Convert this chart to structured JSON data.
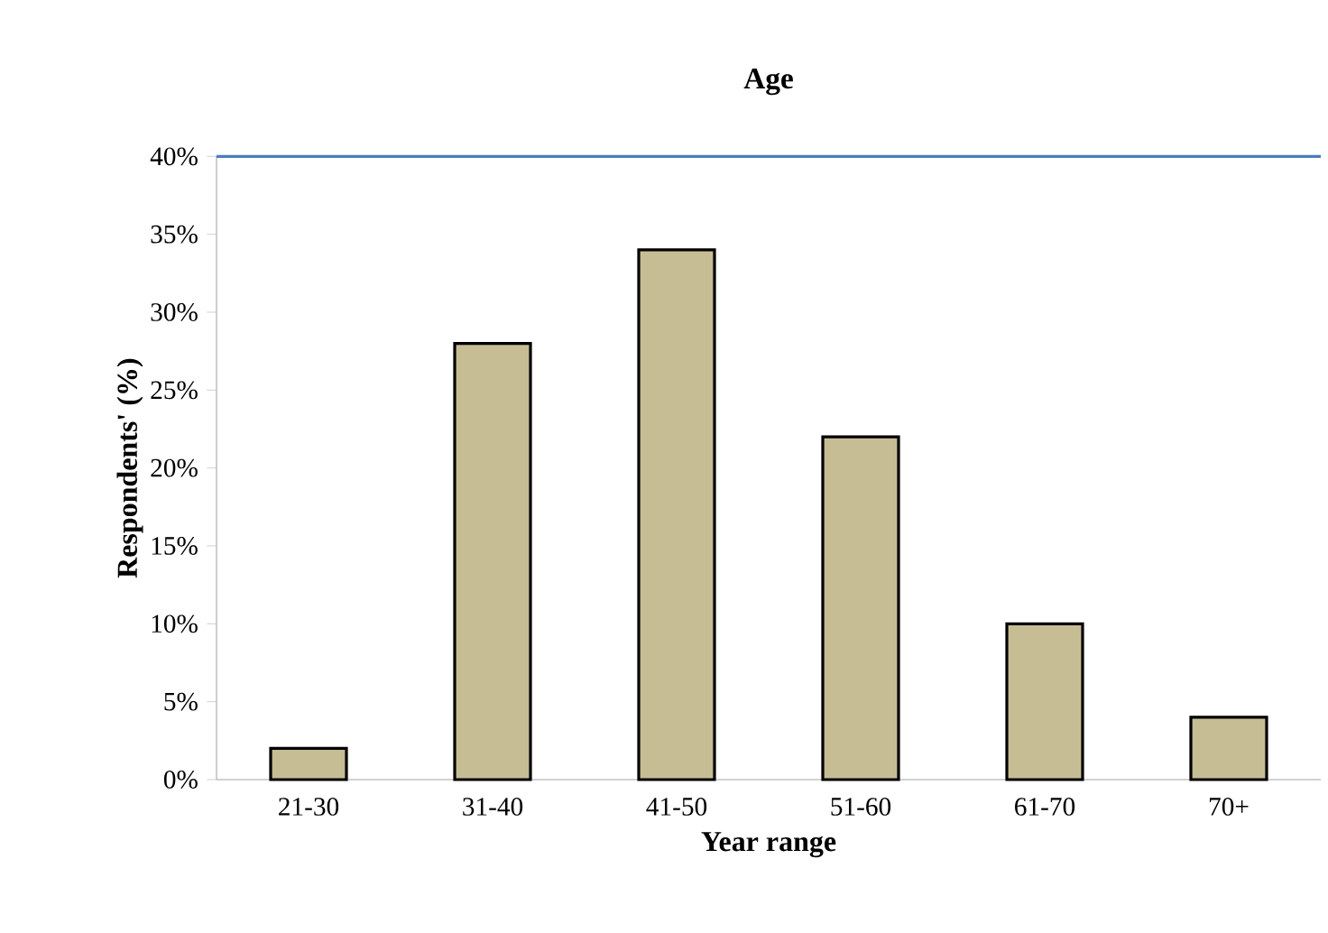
{
  "chart_data": {
    "type": "bar",
    "title": "Age",
    "xlabel": "Year range",
    "ylabel": "Respondents' (%)",
    "categories": [
      "21-30",
      "31-40",
      "41-50",
      "51-60",
      "61-70",
      "70+"
    ],
    "values": [
      2,
      28,
      34,
      22,
      10,
      4
    ],
    "color": "#c6bd95",
    "ylim": [
      0,
      40
    ],
    "yticks": [
      {
        "value": 0,
        "label": "0%"
      },
      {
        "value": 5,
        "label": "5%"
      },
      {
        "value": 10,
        "label": "10%"
      },
      {
        "value": 15,
        "label": "15%"
      },
      {
        "value": 20,
        "label": "20%"
      },
      {
        "value": 25,
        "label": "25%"
      },
      {
        "value": 30,
        "label": "30%"
      },
      {
        "value": 35,
        "label": "35%"
      },
      {
        "value": 40,
        "label": "40%"
      }
    ],
    "ref_lines": [
      {
        "axis": "y",
        "value": 40,
        "color": "#4a7ebb"
      }
    ]
  }
}
